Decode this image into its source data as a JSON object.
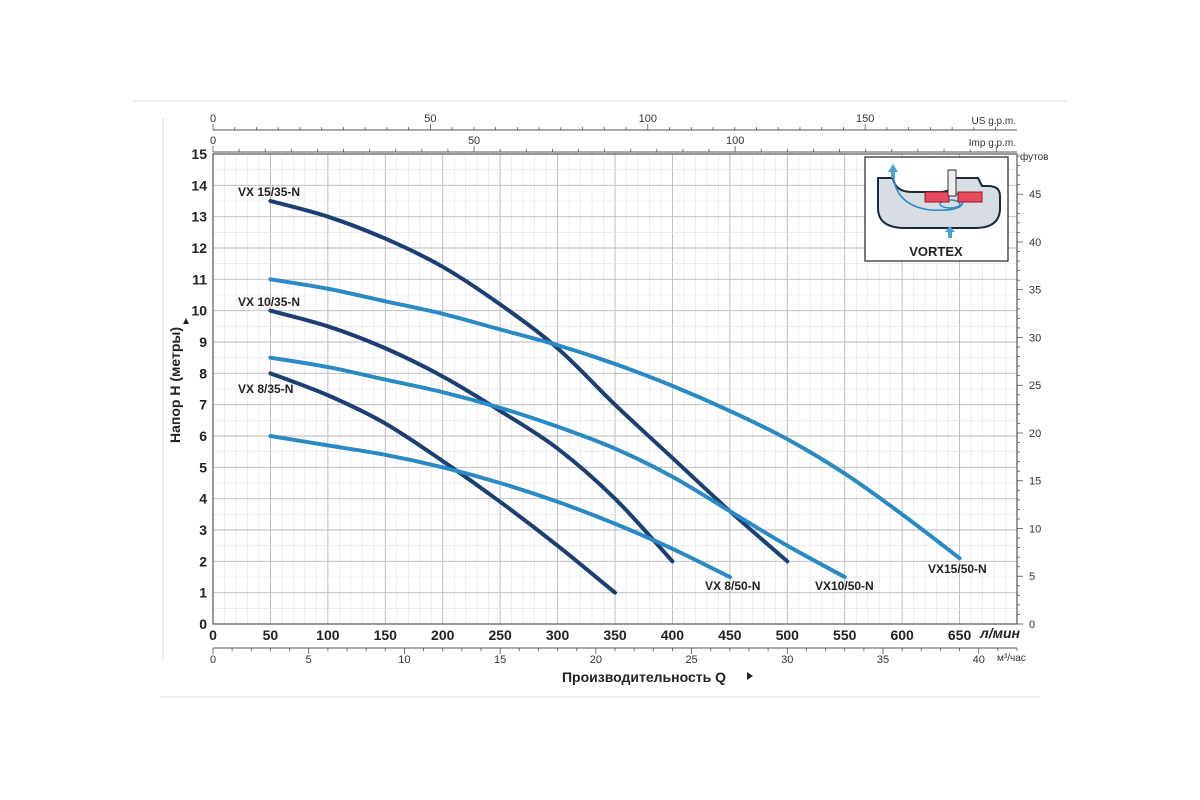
{
  "chart_data": {
    "type": "line",
    "ylabel": "Напор H (метры)",
    "xlabel": "Производительность Q",
    "x_unit_main": "л/мин",
    "x_unit_bottom": "м³/час",
    "x_unit_top_us": "US g.p.m.",
    "x_unit_top_imp": "Imp g.p.m.",
    "y_unit_right": "футов",
    "xlim": [
      0,
      700
    ],
    "ylim": [
      0,
      15
    ],
    "grid": true,
    "x_ticks": [
      0,
      50,
      100,
      150,
      200,
      250,
      300,
      350,
      400,
      450,
      500,
      550,
      600,
      650
    ],
    "y_ticks": [
      0,
      1,
      2,
      3,
      4,
      5,
      6,
      7,
      8,
      9,
      10,
      11,
      12,
      13,
      14,
      15
    ],
    "m3h_ticks": [
      0,
      5,
      10,
      15,
      20,
      25,
      30,
      35,
      40
    ],
    "us_gpm_ticks": [
      0,
      50,
      100,
      150
    ],
    "imp_gpm_ticks": [
      0,
      50,
      100
    ],
    "feet_ticks": [
      0,
      5,
      10,
      15,
      20,
      25,
      30,
      35,
      40,
      45
    ],
    "series": [
      {
        "name": "VX 15/35-N",
        "color": "#1b3f72",
        "x": [
          50,
          100,
          150,
          200,
          250,
          300,
          350,
          400,
          450,
          500
        ],
        "y": [
          13.5,
          13.0,
          12.3,
          11.4,
          10.2,
          8.8,
          7.0,
          5.3,
          3.6,
          2.0
        ]
      },
      {
        "name": "VX 10/35-N",
        "color": "#1b3f72",
        "x": [
          50,
          100,
          150,
          200,
          250,
          300,
          350,
          400
        ],
        "y": [
          10.0,
          9.5,
          8.8,
          7.9,
          6.8,
          5.6,
          4.0,
          2.0
        ]
      },
      {
        "name": "VX 8/35-N",
        "color": "#1b3f72",
        "x": [
          50,
          100,
          150,
          200,
          250,
          300,
          350
        ],
        "y": [
          8.0,
          7.3,
          6.4,
          5.2,
          3.9,
          2.5,
          1.0
        ]
      },
      {
        "name": "VX15/50-N",
        "color": "#2a8ac4",
        "x": [
          50,
          100,
          150,
          200,
          250,
          300,
          350,
          400,
          450,
          500,
          550,
          600,
          650
        ],
        "y": [
          11.0,
          10.7,
          10.3,
          9.9,
          9.4,
          8.9,
          8.3,
          7.6,
          6.8,
          5.9,
          4.8,
          3.5,
          2.1
        ]
      },
      {
        "name": "VX10/50-N",
        "color": "#2a8ac4",
        "x": [
          50,
          100,
          150,
          200,
          250,
          300,
          350,
          400,
          450,
          500,
          550
        ],
        "y": [
          8.5,
          8.2,
          7.8,
          7.4,
          6.9,
          6.3,
          5.6,
          4.7,
          3.6,
          2.5,
          1.5
        ]
      },
      {
        "name": "VX 8/50-N",
        "color": "#2a8ac4",
        "x": [
          50,
          100,
          150,
          200,
          250,
          300,
          350,
          400,
          450
        ],
        "y": [
          6.0,
          5.7,
          5.4,
          5.0,
          4.5,
          3.9,
          3.2,
          2.4,
          1.5
        ]
      }
    ]
  },
  "inset": {
    "label": "VORTEX"
  },
  "colors": {
    "dark_series": "#1b3f72",
    "light_series": "#2a8ac4",
    "grid": "#d0d0d0"
  }
}
